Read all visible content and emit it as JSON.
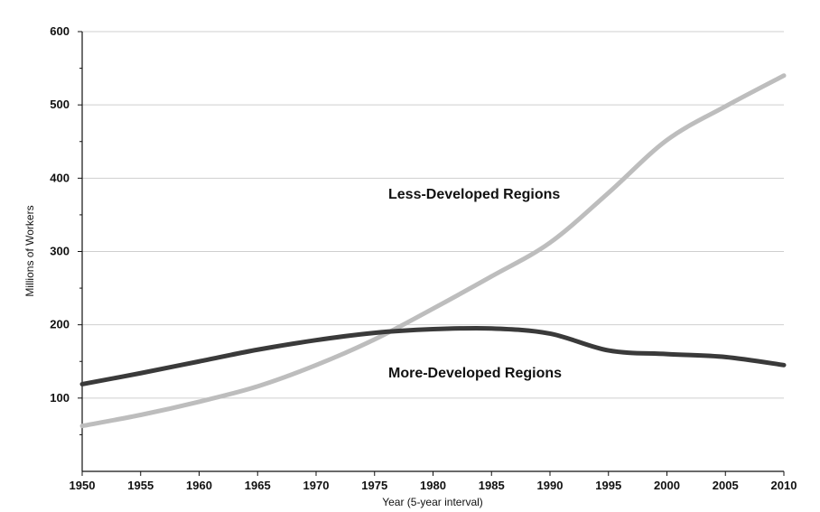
{
  "chart_data": {
    "type": "line",
    "xlabel": "Year (5-year interval)",
    "ylabel": "Millions of Workers",
    "xlim": [
      1950,
      2010
    ],
    "ylim": [
      0,
      600
    ],
    "x_ticks": [
      1950,
      1955,
      1960,
      1965,
      1970,
      1975,
      1980,
      1985,
      1990,
      1995,
      2000,
      2005,
      2010
    ],
    "y_ticks": [
      100,
      200,
      300,
      400,
      500,
      600
    ],
    "grid": true,
    "x": [
      1950,
      1955,
      1960,
      1965,
      1970,
      1975,
      1980,
      1985,
      1990,
      1995,
      2000,
      2005,
      2010
    ],
    "series": [
      {
        "name": "Less-Developed Regions",
        "color": "#bdbdbd",
        "values": [
          62,
          77,
          95,
          116,
          145,
          180,
          222,
          266,
          312,
          380,
          452,
          498,
          540
        ]
      },
      {
        "name": "More-Developed Regions",
        "color": "#3a3a3a",
        "values": [
          119,
          134,
          150,
          166,
          179,
          189,
          194,
          195,
          188,
          165,
          160,
          156,
          145
        ]
      }
    ]
  }
}
